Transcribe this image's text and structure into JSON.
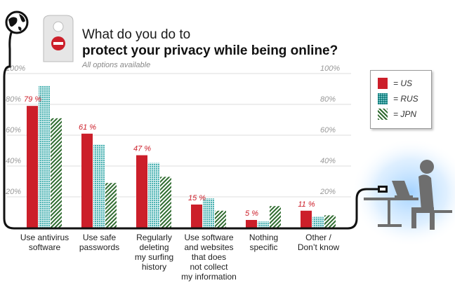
{
  "header": {
    "title_line1": "What do you do to",
    "title_line2": "protect your privacy while being online?",
    "subtitle": "All options available"
  },
  "colors": {
    "us": "#cc1f2a",
    "rus": "#4fb3b3",
    "jpn": "#2f6b2f",
    "gridline": "#dddddd",
    "frame": "#111111",
    "tick_text": "#999999",
    "value_label": "#cc1f2a",
    "glow": "#9fd0ff"
  },
  "legend": {
    "items": [
      {
        "label": "= US",
        "key": "us"
      },
      {
        "label": "= RUS",
        "key": "rus"
      },
      {
        "label": "= JPN",
        "key": "jpn"
      }
    ]
  },
  "chart_data": {
    "type": "bar",
    "title": "What do you do to protect your privacy while being online?",
    "subtitle": "All options available",
    "categories": [
      "Use antivirus software",
      "Use safe passwords",
      "Regularly deleting my surfing history",
      "Use software and websites that does not collect my information",
      "Nothing specific",
      "Other / Don’t know"
    ],
    "category_lines": [
      [
        "Use antivirus",
        "software"
      ],
      [
        "Use safe",
        "passwords"
      ],
      [
        "Regularly",
        "deleting",
        "my surfing",
        "history"
      ],
      [
        "Use software",
        "and websites",
        "that does",
        "not collect",
        "my information"
      ],
      [
        "Nothing",
        "specific"
      ],
      [
        "Other /",
        "Don’t know"
      ]
    ],
    "series": [
      {
        "name": "US",
        "key": "us",
        "values": [
          79,
          61,
          47,
          15,
          5,
          11
        ]
      },
      {
        "name": "RUS",
        "key": "rus",
        "values": [
          92,
          54,
          42,
          19,
          4,
          7
        ]
      },
      {
        "name": "JPN",
        "key": "jpn",
        "values": [
          71,
          29,
          33,
          11,
          14,
          8
        ]
      }
    ],
    "value_labels": [
      "79 %",
      "61 %",
      "47 %",
      "15 %",
      "5 %",
      "11 %"
    ],
    "y_ticks": [
      20,
      40,
      60,
      80,
      100
    ],
    "y_tick_labels": [
      "20%",
      "40%",
      "60%",
      "80%",
      "100%"
    ],
    "ylim": [
      0,
      100
    ],
    "xlabel": "",
    "ylabel": "",
    "grid": true,
    "legend_position": "top-right"
  }
}
